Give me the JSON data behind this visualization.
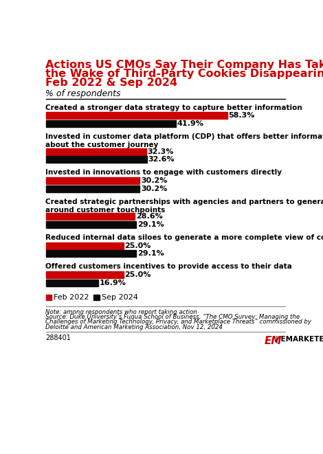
{
  "title_line1": "Actions US CMOs Say Their Company Has Taken in",
  "title_line2": "the Wake of Third-Party Cookies Disappearing,",
  "title_line3": "Feb 2022 & Sep 2024",
  "subtitle": "% of respondents",
  "categories": [
    "Created a stronger data strategy to capture better information",
    "Invested in customer data platform (CDP) that offers better information\nabout the customer journey",
    "Invested in innovations to engage with customers directly",
    "Created strategic partnerships with agencies and partners to generate data\naround customer touchpoints",
    "Reduced internal data siloes to generate a more complete view of consumers",
    "Offered customers incentives to provide access to their data"
  ],
  "cat_lines": [
    1,
    2,
    1,
    2,
    1,
    1
  ],
  "feb2022": [
    58.3,
    32.3,
    30.2,
    28.6,
    25.0,
    25.0
  ],
  "sep2024": [
    41.9,
    32.6,
    30.2,
    29.1,
    29.1,
    16.9
  ],
  "color_feb": "#cc0000",
  "color_sep": "#0a0a0a",
  "xlim": 65,
  "note_line1": "Note: among respondents who report taking action",
  "note_line2": "Source: Duke University’s Fuqua School of Business, “The CMO Survey: Managing the",
  "note_line3": "Challenges of Marketing Technology, Privacy, and Marketplace Threats” commissioned by",
  "note_line4": "Deloitte and American Marketing Association, Nov 12, 2024",
  "chart_id": "288401",
  "legend_feb": "Feb 2022",
  "legend_sep": "Sep 2024",
  "bg_color": "#ffffff"
}
